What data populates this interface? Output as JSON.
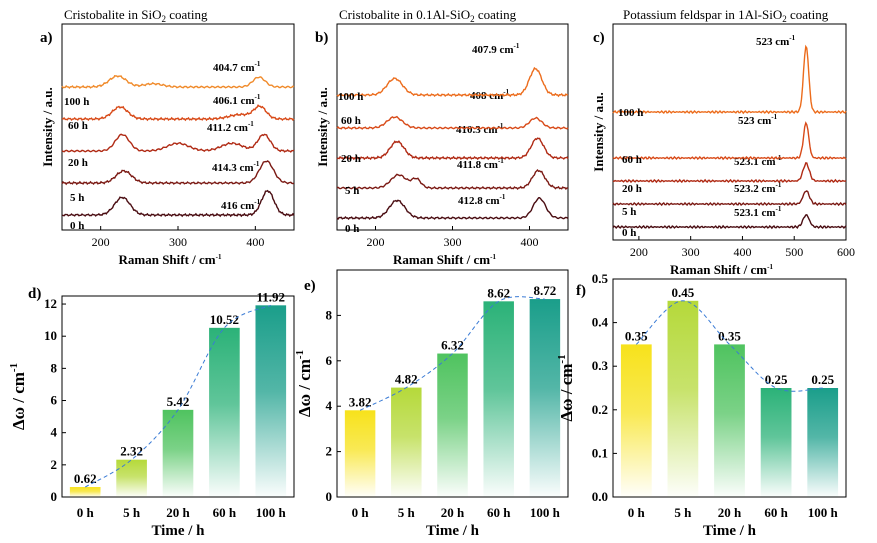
{
  "figure": {
    "raman_x_label": "Raman Shift / cm",
    "raman_x_label_sup": "-1",
    "raman_y_label": "Intensity / a.u.",
    "bar_x_label": "Time / h",
    "bar_y_label": "Δω / cm",
    "bar_y_label_sup": "-1",
    "colors": {
      "trace_0h": "#4a0d12",
      "trace_5h": "#7b1a14",
      "trace_20h": "#b02a14",
      "trace_60h": "#d84a18",
      "trace_100h": "#ec6c1c",
      "trace_top": "#f08a2a",
      "bar_yellow": "#f7e21b",
      "bar_green": "#4fc35f",
      "bar_teal": "#1a9e8a",
      "trend_line": "#3a7bd5"
    }
  },
  "chart_data": [
    {
      "panel": "a",
      "type": "line",
      "title": "Cristobalite in SiO",
      "title_sub": "2",
      "title_rest": " coating",
      "xlim": [
        150,
        450
      ],
      "xticks": [
        200,
        300,
        400
      ],
      "series": [
        {
          "name": "0 h",
          "base": 0,
          "peak_label": "416 cm",
          "peak_sup": "-1",
          "peaks": [
            [
              228,
              0.8,
              10
            ],
            [
              416,
              1.1,
              8
            ]
          ]
        },
        {
          "name": "5 h",
          "base": 1,
          "peak_label": "414.3 cm",
          "peak_sup": "-1",
          "peaks": [
            [
              230,
              0.55,
              10
            ],
            [
              414.3,
              1.0,
              9
            ]
          ]
        },
        {
          "name": "20 h",
          "base": 2,
          "peak_label": "411.2 cm",
          "peak_sup": "-1",
          "peaks": [
            [
              228,
              0.75,
              9
            ],
            [
              300,
              0.35,
              14
            ],
            [
              370,
              0.35,
              14
            ],
            [
              411.2,
              0.75,
              8
            ]
          ]
        },
        {
          "name": "60 h",
          "base": 3,
          "peak_label": "406.1 cm",
          "peak_sup": "-1",
          "peaks": [
            [
              225,
              0.55,
              10
            ],
            [
              380,
              0.2,
              14
            ],
            [
              406.1,
              0.55,
              8
            ]
          ]
        },
        {
          "name": "100 h",
          "base": 4,
          "peak_label": "404.7 cm",
          "peak_sup": "-1",
          "peaks": [
            [
              222,
              0.5,
              11
            ],
            [
              268,
              0.15,
              12
            ],
            [
              404.7,
              0.45,
              8
            ]
          ]
        }
      ]
    },
    {
      "panel": "b",
      "type": "line",
      "title": "Cristobalite in 0.1Al-SiO",
      "title_sub": "2",
      "title_rest": " coating",
      "xlim": [
        150,
        450
      ],
      "xticks": [
        200,
        300,
        400
      ],
      "series": [
        {
          "name": "0 h",
          "base": 0,
          "peak_label": "412.8 cm",
          "peak_sup": "-1",
          "peaks": [
            [
              228,
              0.8,
              10
            ],
            [
              412.8,
              0.9,
              8
            ]
          ]
        },
        {
          "name": "5 h",
          "base": 1,
          "peak_label": "411.8 cm",
          "peak_sup": "-1",
          "peaks": [
            [
              230,
              0.6,
              10
            ],
            [
              253,
              0.4,
              6
            ],
            [
              411.8,
              0.8,
              8
            ]
          ]
        },
        {
          "name": "20 h",
          "base": 2,
          "peak_label": "410.3 cm",
          "peak_sup": "-1",
          "peaks": [
            [
              228,
              0.75,
              9
            ],
            [
              410.3,
              0.9,
              8
            ]
          ]
        },
        {
          "name": "60 h",
          "base": 3,
          "peak_label": "408 cm",
          "peak_sup": "-1",
          "peaks": [
            [
              225,
              0.5,
              10
            ],
            [
              408,
              0.45,
              8
            ]
          ]
        },
        {
          "name": "100 h",
          "base": 4.1,
          "peak_label": "407.9 cm",
          "peak_sup": "-1",
          "peaks": [
            [
              225,
              0.75,
              10
            ],
            [
              407.9,
              1.2,
              8
            ]
          ]
        }
      ]
    },
    {
      "panel": "c",
      "type": "line",
      "title": "Potassium feldspar in 1Al-SiO",
      "title_sub": "2",
      "title_rest": " coating",
      "xlim": [
        150,
        600
      ],
      "xticks": [
        200,
        300,
        400,
        500,
        600
      ],
      "series": [
        {
          "name": "0 h",
          "base": 0,
          "peak_label": "523.1 cm",
          "peak_sup": "-1",
          "peaks": [
            [
              523.1,
              0.55,
              6
            ]
          ]
        },
        {
          "name": "5 h",
          "base": 1,
          "peak_label": "523.2 cm",
          "peak_sup": "-1",
          "peaks": [
            [
              523.2,
              0.6,
              6
            ]
          ]
        },
        {
          "name": "20 h",
          "base": 2,
          "peak_label": "523.1 cm",
          "peak_sup": "-1",
          "peaks": [
            [
              523.1,
              0.8,
              6
            ]
          ]
        },
        {
          "name": "60 h",
          "base": 3,
          "peak_label": "523 cm",
          "peak_sup": "-1",
          "peaks": [
            [
              523,
              1.6,
              5
            ]
          ]
        },
        {
          "name": "100 h",
          "base": 5,
          "peak_label": "523 cm",
          "peak_sup": "-1",
          "peaks": [
            [
              523,
              3.0,
              5
            ]
          ]
        }
      ]
    },
    {
      "panel": "d",
      "type": "bar",
      "categories": [
        "0 h",
        "5 h",
        "20 h",
        "60 h",
        "100 h"
      ],
      "values": [
        0.62,
        2.32,
        5.42,
        10.52,
        11.92
      ],
      "value_labels": [
        "0.62",
        "2.32",
        "5.42",
        "10.52",
        "11.92"
      ],
      "ylim": [
        0,
        12.5
      ],
      "yticks": [
        0,
        2,
        4,
        6,
        8,
        10,
        12
      ],
      "ytick_labels": [
        "0",
        "2",
        "4",
        "6",
        "8",
        "10",
        "12"
      ]
    },
    {
      "panel": "e",
      "type": "bar",
      "categories": [
        "0 h",
        "5 h",
        "20 h",
        "60 h",
        "100 h"
      ],
      "values": [
        3.82,
        4.82,
        6.32,
        8.62,
        8.72
      ],
      "value_labels": [
        "3.82",
        "4.82",
        "6.32",
        "8.62",
        "8.72"
      ],
      "ylim": [
        0,
        10
      ],
      "yticks": [
        0,
        2,
        4,
        6,
        8
      ],
      "ytick_labels": [
        "0",
        "2",
        "4",
        "6",
        "8"
      ]
    },
    {
      "panel": "f",
      "type": "bar",
      "categories": [
        "0 h",
        "5 h",
        "20 h",
        "60 h",
        "100 h"
      ],
      "values": [
        0.35,
        0.45,
        0.35,
        0.25,
        0.25
      ],
      "value_labels": [
        "0.35",
        "0.45",
        "0.35",
        "0.25",
        "0.25"
      ],
      "ylim": [
        0,
        0.5
      ],
      "yticks": [
        0,
        0.1,
        0.2,
        0.3,
        0.4,
        0.5
      ],
      "ytick_labels": [
        "0.0",
        "0.1",
        "0.2",
        "0.3",
        "0.4",
        "0.5"
      ]
    }
  ]
}
